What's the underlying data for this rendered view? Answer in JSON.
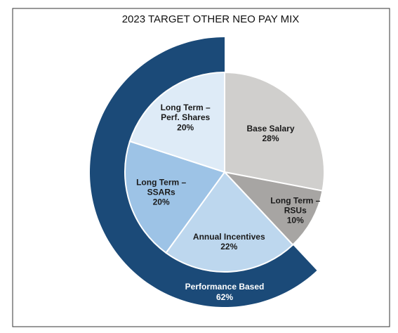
{
  "chart_data": {
    "type": "pie",
    "title": "2023 TARGET OTHER NEO PAY MIX",
    "categories": [
      "Base Salary",
      "Long Term – RSUs",
      "Annual Incentives",
      "Long Term – SSARs",
      "Long Term – Perf. Shares"
    ],
    "values": [
      28,
      10,
      22,
      20,
      20
    ],
    "value_labels": [
      "28%",
      "10%",
      "22%",
      "20%",
      "20%"
    ],
    "colors": [
      "#d0cfcd",
      "#a7a5a3",
      "#bdd7ee",
      "#9dc3e6",
      "#deebf7"
    ],
    "ring": {
      "name": "Performance Based",
      "value": 62,
      "value_label": "62%",
      "color": "#1b4a78"
    }
  }
}
